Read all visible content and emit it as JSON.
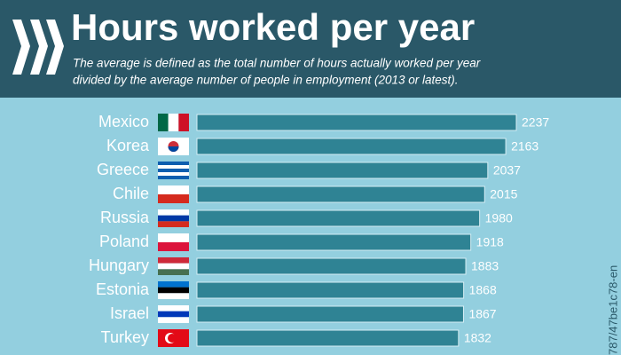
{
  "chart_data": {
    "type": "bar",
    "orientation": "horizontal",
    "title": "Hours worked per year",
    "subtitle": [
      "The average is defined as the total number of hours actually worked per year",
      "divided by the average number of people in employment (2013 or latest)."
    ],
    "categories": [
      "Mexico",
      "Korea",
      "Greece",
      "Chile",
      "Russia",
      "Poland",
      "Hungary",
      "Estonia",
      "Israel",
      "Turkey"
    ],
    "values": [
      2237,
      2163,
      2037,
      2015,
      1980,
      1918,
      1883,
      1868,
      1867,
      1832
    ],
    "color": "#2f8394",
    "side_note": "787/47be1c78-en"
  }
}
